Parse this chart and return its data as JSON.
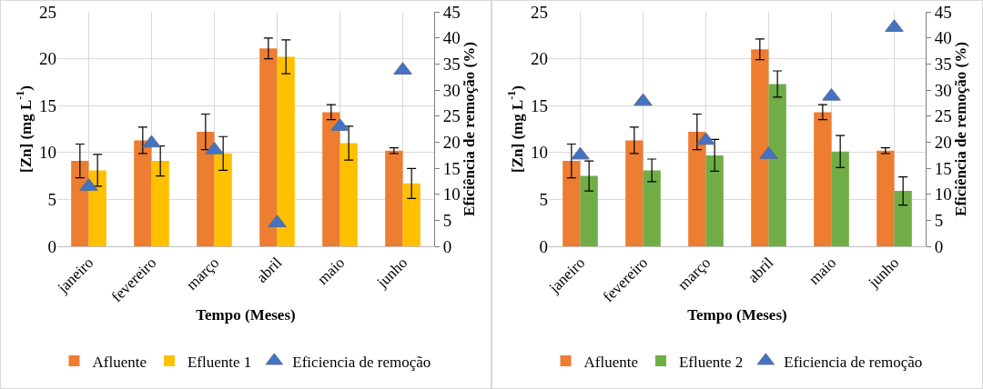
{
  "chart_data": [
    {
      "type": "bar",
      "categories": [
        "janeiro",
        "fevereiro",
        "março",
        "abril",
        "maio",
        "junho"
      ],
      "xlabel": "Tempo (Meses)",
      "ylabel": "[Zn] (mg L$^{-1}$)",
      "y2label": "Eficiência de remoção (%)",
      "ylim": [
        0,
        25
      ],
      "yticks": [
        0,
        5,
        10,
        15,
        20,
        25
      ],
      "y2lim": [
        0,
        45
      ],
      "y2ticks": [
        0,
        5,
        10,
        15,
        20,
        25,
        30,
        35,
        40,
        45
      ],
      "grid": true,
      "legend": "bottom",
      "series": [
        {
          "name": "Afluente",
          "color": "#ed7d31",
          "values": [
            9.1,
            11.3,
            12.2,
            21.1,
            14.3,
            10.2
          ],
          "errors": [
            1.8,
            1.4,
            1.9,
            1.1,
            0.8,
            0.3
          ]
        },
        {
          "name": "Efluente 1",
          "color": "#ffc000",
          "values": [
            8.1,
            9.1,
            9.9,
            20.2,
            11.0,
            6.7
          ],
          "errors": [
            1.7,
            1.6,
            1.8,
            1.8,
            1.8,
            1.6
          ]
        },
        {
          "name": "Eficiencia de remoção",
          "type": "scatter",
          "axis": "y2",
          "marker": "triangle",
          "color": "#4472c4",
          "values": [
            11.5,
            19.8,
            18.5,
            4.5,
            23,
            33.8
          ]
        }
      ]
    },
    {
      "type": "bar",
      "categories": [
        "janeiro",
        "fevereiro",
        "março",
        "abril",
        "maio",
        "junho"
      ],
      "xlabel": "Tempo (Meses)",
      "ylabel": "[Zn] (mg L$^{-1}$)",
      "y2label": "Eficiência de remoção (%)",
      "ylim": [
        0,
        25
      ],
      "yticks": [
        0,
        5,
        10,
        15,
        20,
        25
      ],
      "y2lim": [
        0,
        45
      ],
      "y2ticks": [
        0,
        5,
        10,
        15,
        20,
        25,
        30,
        35,
        40,
        45
      ],
      "grid": true,
      "legend": "bottom",
      "series": [
        {
          "name": "Afluente",
          "color": "#ed7d31",
          "values": [
            9.1,
            11.3,
            12.2,
            21.0,
            14.3,
            10.2
          ],
          "errors": [
            1.8,
            1.4,
            1.9,
            1.1,
            0.8,
            0.3
          ]
        },
        {
          "name": "Efluente 2",
          "color": "#70ad47",
          "values": [
            7.5,
            8.1,
            9.7,
            17.3,
            10.1,
            5.9
          ],
          "errors": [
            1.6,
            1.2,
            1.7,
            1.4,
            1.7,
            1.5
          ]
        },
        {
          "name": "Eficiencia de remoção",
          "type": "scatter",
          "axis": "y2",
          "marker": "triangle",
          "color": "#4472c4",
          "values": [
            17.5,
            27.8,
            20.3,
            17.6,
            28.8,
            42.0
          ]
        }
      ]
    }
  ]
}
